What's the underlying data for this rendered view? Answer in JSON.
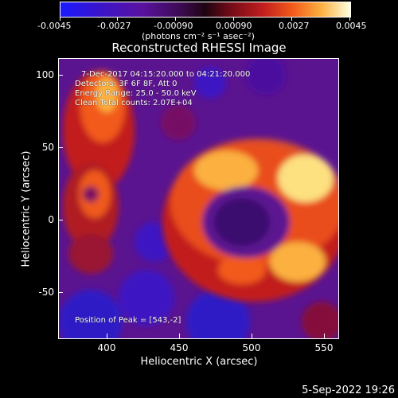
{
  "colorbar": {
    "tick_labels": [
      "-0.0045",
      "-0.0027",
      "-0.00090",
      "0.00090",
      "0.0027",
      "0.0045"
    ],
    "unit": "(photons cm⁻² s⁻¹ asec⁻²)"
  },
  "title": "Reconstructed RHESSI Image",
  "info": {
    "time_range": "7-Dec-2017 04:15:20.000 to 04:21:20.000",
    "detectors": "Detectors: 3F 6F 8F, Att 0",
    "energy_range": "Energy Range: 25.0 - 50.0 keV",
    "clean_counts": "Clean    Total counts: 2.07E+04",
    "peak": "Position of Peak = [543,-2]"
  },
  "axes": {
    "xlabel": "Heliocentric X (arcsec)",
    "ylabel": "Heliocentric Y (arcsec)",
    "x_ticks": [
      "400",
      "450",
      "500",
      "550"
    ],
    "y_ticks": [
      "100",
      "50",
      "0",
      "-50"
    ]
  },
  "footer_date": "5-Sep-2022 19:26",
  "colors": {
    "background": "#000000",
    "low": "#1a1aff",
    "mid": "#1e0410",
    "high": "#ffffe0"
  }
}
